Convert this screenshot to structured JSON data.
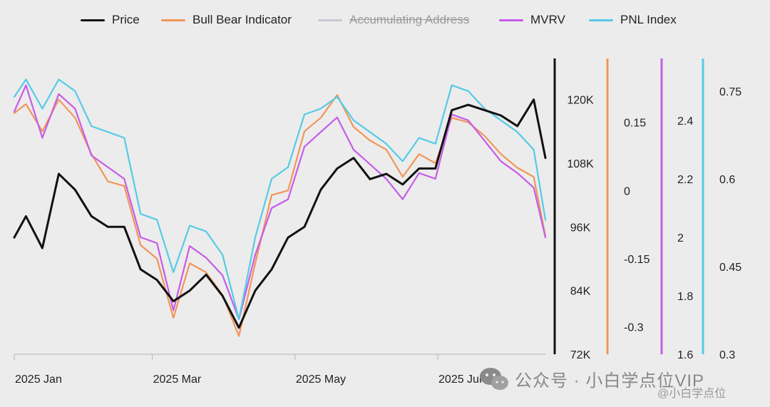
{
  "legend": [
    {
      "label": "Price",
      "color": "#111111",
      "hidden": false
    },
    {
      "label": "Bull Bear Indicator",
      "color": "#f0965a",
      "hidden": false
    },
    {
      "label": "Accumulating Address",
      "color": "#c8c8d4",
      "hidden": true
    },
    {
      "label": "MVRV",
      "color": "#c65ce8",
      "hidden": false
    },
    {
      "label": "PNL Index",
      "color": "#55cbe6",
      "hidden": false
    }
  ],
  "watermark": {
    "main": "公众号 · 小白学点位VIP",
    "sub": "@小白学点位"
  },
  "chart_data": {
    "type": "line",
    "x_ticks": [
      "2025 Jan",
      "2025 Mar",
      "2025 May",
      "2025 Jul"
    ],
    "x_range": [
      "2025-01-01",
      "2025-08-16"
    ],
    "axes": [
      {
        "name": "Price",
        "ticks": [
          "120K",
          "108K",
          "96K",
          "84K",
          "72K"
        ],
        "range": [
          72000,
          126000
        ],
        "color": "#111111"
      },
      {
        "name": "Bull Bear Indicator",
        "ticks": [
          "0.15",
          "0",
          "-0.15",
          "-0.3"
        ],
        "range": [
          -0.36,
          0.27
        ],
        "color": "#f0965a"
      },
      {
        "name": "MVRV",
        "ticks": [
          "2.4",
          "2.2",
          "2",
          "1.8",
          "1.6"
        ],
        "range": [
          1.6,
          2.58
        ],
        "color": "#c65ce8"
      },
      {
        "name": "PNL Index",
        "ticks": [
          "0.75",
          "0.6",
          "0.45",
          "0.3"
        ],
        "range": [
          0.3,
          0.79
        ],
        "color": "#55cbe6"
      }
    ],
    "series": [
      {
        "name": "Price",
        "color": "#111111",
        "axis": 0,
        "dates": [
          "2025-01-01",
          "2025-01-06",
          "2025-01-13",
          "2025-01-20",
          "2025-01-27",
          "2025-02-03",
          "2025-02-10",
          "2025-02-17",
          "2025-02-24",
          "2025-03-03",
          "2025-03-10",
          "2025-03-17",
          "2025-03-24",
          "2025-03-31",
          "2025-04-07",
          "2025-04-14",
          "2025-04-21",
          "2025-04-28",
          "2025-05-05",
          "2025-05-12",
          "2025-05-19",
          "2025-05-26",
          "2025-06-02",
          "2025-06-09",
          "2025-06-16",
          "2025-06-23",
          "2025-06-30",
          "2025-07-07",
          "2025-07-14",
          "2025-07-21",
          "2025-07-28",
          "2025-08-04",
          "2025-08-11",
          "2025-08-16"
        ],
        "values": [
          94000,
          98000,
          92000,
          106000,
          103000,
          98000,
          96000,
          96000,
          88000,
          86000,
          82000,
          84000,
          87000,
          83000,
          77000,
          84000,
          88000,
          94000,
          96000,
          103000,
          107000,
          109000,
          105000,
          106000,
          104000,
          107000,
          107000,
          118000,
          119000,
          118000,
          117000,
          115000,
          120000,
          109000
        ]
      },
      {
        "name": "Bull Bear Indicator",
        "color": "#f0965a",
        "axis": 1,
        "dates": [
          "2025-01-01",
          "2025-01-06",
          "2025-01-13",
          "2025-01-20",
          "2025-01-27",
          "2025-02-03",
          "2025-02-10",
          "2025-02-17",
          "2025-02-24",
          "2025-03-03",
          "2025-03-10",
          "2025-03-17",
          "2025-03-24",
          "2025-03-31",
          "2025-04-07",
          "2025-04-14",
          "2025-04-21",
          "2025-04-28",
          "2025-05-05",
          "2025-05-12",
          "2025-05-19",
          "2025-05-26",
          "2025-06-02",
          "2025-06-09",
          "2025-06-16",
          "2025-06-23",
          "2025-06-30",
          "2025-07-07",
          "2025-07-14",
          "2025-07-21",
          "2025-07-28",
          "2025-08-04",
          "2025-08-11",
          "2025-08-16"
        ],
        "values": [
          0.17,
          0.19,
          0.13,
          0.2,
          0.16,
          0.08,
          0.02,
          0.01,
          -0.12,
          -0.15,
          -0.28,
          -0.16,
          -0.18,
          -0.23,
          -0.32,
          -0.16,
          -0.01,
          0,
          0.13,
          0.16,
          0.21,
          0.14,
          0.11,
          0.09,
          0.03,
          0.08,
          0.06,
          0.16,
          0.15,
          0.12,
          0.08,
          0.05,
          0.03,
          -0.1
        ]
      },
      {
        "name": "MVRV",
        "color": "#c65ce8",
        "axis": 2,
        "dates": [
          "2025-01-01",
          "2025-01-06",
          "2025-01-13",
          "2025-01-20",
          "2025-01-27",
          "2025-02-03",
          "2025-02-10",
          "2025-02-17",
          "2025-02-24",
          "2025-03-03",
          "2025-03-10",
          "2025-03-17",
          "2025-03-24",
          "2025-03-31",
          "2025-04-07",
          "2025-04-14",
          "2025-04-21",
          "2025-04-28",
          "2025-05-05",
          "2025-05-12",
          "2025-05-19",
          "2025-05-26",
          "2025-06-02",
          "2025-06-09",
          "2025-06-16",
          "2025-06-23",
          "2025-06-30",
          "2025-07-07",
          "2025-07-14",
          "2025-07-21",
          "2025-07-28",
          "2025-08-04",
          "2025-08-11",
          "2025-08-16"
        ],
        "values": [
          2.43,
          2.52,
          2.34,
          2.49,
          2.44,
          2.28,
          2.24,
          2.2,
          2.0,
          1.98,
          1.75,
          1.97,
          1.93,
          1.87,
          1.72,
          1.94,
          2.1,
          2.13,
          2.31,
          2.36,
          2.41,
          2.3,
          2.25,
          2.2,
          2.13,
          2.22,
          2.2,
          2.42,
          2.4,
          2.33,
          2.26,
          2.22,
          2.17,
          2.0
        ]
      },
      {
        "name": "PNL Index",
        "color": "#55cbe6",
        "axis": 3,
        "dates": [
          "2025-01-01",
          "2025-01-06",
          "2025-01-13",
          "2025-01-20",
          "2025-01-27",
          "2025-02-03",
          "2025-02-10",
          "2025-02-17",
          "2025-02-24",
          "2025-03-03",
          "2025-03-10",
          "2025-03-17",
          "2025-03-24",
          "2025-03-31",
          "2025-04-07",
          "2025-04-14",
          "2025-04-21",
          "2025-04-28",
          "2025-05-05",
          "2025-05-12",
          "2025-05-19",
          "2025-05-26",
          "2025-06-02",
          "2025-06-09",
          "2025-06-16",
          "2025-06-23",
          "2025-06-30",
          "2025-07-07",
          "2025-07-14",
          "2025-07-21",
          "2025-07-28",
          "2025-08-04",
          "2025-08-11",
          "2025-08-16"
        ],
        "values": [
          0.74,
          0.77,
          0.72,
          0.77,
          0.75,
          0.69,
          0.68,
          0.67,
          0.54,
          0.53,
          0.44,
          0.52,
          0.51,
          0.47,
          0.36,
          0.5,
          0.6,
          0.62,
          0.71,
          0.72,
          0.74,
          0.7,
          0.68,
          0.66,
          0.63,
          0.67,
          0.66,
          0.76,
          0.75,
          0.72,
          0.7,
          0.68,
          0.65,
          0.53
        ]
      }
    ]
  }
}
